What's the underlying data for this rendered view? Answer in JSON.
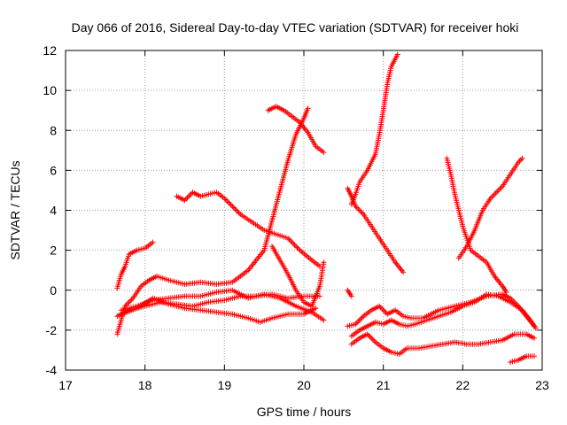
{
  "chart_data": {
    "type": "scatter",
    "title": "Day 066 of 2016, Sidereal Day-to-day VTEC variation (SDTVAR) for receiver hoki",
    "xlabel": "GPS time / hours",
    "ylabel": "SDTVAR / TECUs",
    "xlim": [
      17,
      23
    ],
    "ylim": [
      -4,
      12
    ],
    "xticks": [
      17,
      18,
      19,
      20,
      21,
      22,
      23
    ],
    "yticks": [
      -4,
      -2,
      0,
      2,
      4,
      6,
      8,
      10,
      12
    ],
    "grid": true,
    "marker": "+",
    "marker_color": "#ff0000",
    "series": [
      {
        "name": "s1",
        "points": [
          [
            17.65,
            0.1
          ],
          [
            17.7,
            0.8
          ],
          [
            17.75,
            1.2
          ],
          [
            17.8,
            1.8
          ],
          [
            17.9,
            2.0
          ],
          [
            18.0,
            2.1
          ],
          [
            18.1,
            2.4
          ]
        ]
      },
      {
        "name": "s2",
        "points": [
          [
            17.65,
            -2.2
          ],
          [
            17.7,
            -1.5
          ],
          [
            17.75,
            -0.8
          ],
          [
            17.85,
            -0.4
          ],
          [
            17.95,
            0.2
          ],
          [
            18.05,
            0.5
          ],
          [
            18.15,
            0.7
          ],
          [
            18.3,
            0.5
          ],
          [
            18.5,
            0.3
          ],
          [
            18.7,
            0.4
          ],
          [
            18.9,
            0.3
          ],
          [
            19.1,
            0.4
          ],
          [
            19.3,
            1.0
          ],
          [
            19.5,
            2.0
          ],
          [
            19.6,
            3.5
          ],
          [
            19.7,
            5.0
          ],
          [
            19.8,
            6.5
          ],
          [
            19.9,
            7.8
          ],
          [
            20.0,
            8.6
          ],
          [
            20.05,
            9.1
          ]
        ]
      },
      {
        "name": "s3",
        "points": [
          [
            17.65,
            -1.3
          ],
          [
            17.8,
            -1.0
          ],
          [
            18.0,
            -0.8
          ],
          [
            18.2,
            -0.6
          ],
          [
            18.4,
            -0.7
          ],
          [
            18.6,
            -0.8
          ],
          [
            18.8,
            -0.6
          ],
          [
            19.0,
            -0.5
          ],
          [
            19.2,
            -0.3
          ],
          [
            19.4,
            -0.3
          ],
          [
            19.6,
            -0.2
          ],
          [
            19.8,
            -0.4
          ],
          [
            20.0,
            -0.3
          ],
          [
            20.2,
            -0.3
          ]
        ]
      },
      {
        "name": "s4",
        "points": [
          [
            17.7,
            -1.0
          ],
          [
            17.9,
            -0.8
          ],
          [
            18.1,
            -0.5
          ],
          [
            18.3,
            -0.4
          ],
          [
            18.5,
            -0.3
          ],
          [
            18.7,
            -0.3
          ],
          [
            18.9,
            -0.1
          ],
          [
            19.1,
            0.0
          ],
          [
            19.3,
            -0.4
          ],
          [
            19.5,
            -0.2
          ],
          [
            19.7,
            -0.4
          ],
          [
            19.9,
            -0.8
          ],
          [
            20.1,
            -1.1
          ],
          [
            20.25,
            -1.5
          ]
        ]
      },
      {
        "name": "s5",
        "points": [
          [
            17.7,
            -1.2
          ],
          [
            17.9,
            -0.9
          ],
          [
            18.1,
            -0.4
          ],
          [
            18.3,
            -0.7
          ],
          [
            18.5,
            -0.9
          ],
          [
            18.7,
            -1.0
          ],
          [
            18.9,
            -1.1
          ],
          [
            19.1,
            -1.2
          ],
          [
            19.3,
            -1.4
          ],
          [
            19.45,
            -1.6
          ],
          [
            19.6,
            -1.4
          ],
          [
            19.8,
            -1.2
          ],
          [
            20.0,
            -1.2
          ],
          [
            20.15,
            -0.9
          ]
        ]
      },
      {
        "name": "s6",
        "points": [
          [
            18.4,
            4.7
          ],
          [
            18.5,
            4.5
          ],
          [
            18.6,
            4.9
          ],
          [
            18.7,
            4.7
          ],
          [
            18.8,
            4.8
          ],
          [
            18.9,
            4.9
          ],
          [
            19.0,
            4.6
          ],
          [
            19.1,
            4.2
          ],
          [
            19.2,
            3.8
          ],
          [
            19.35,
            3.4
          ],
          [
            19.5,
            3.0
          ],
          [
            19.65,
            2.8
          ],
          [
            19.8,
            2.6
          ],
          [
            19.95,
            2.0
          ],
          [
            20.1,
            1.5
          ],
          [
            20.2,
            1.2
          ]
        ]
      },
      {
        "name": "s7",
        "points": [
          [
            19.55,
            9.0
          ],
          [
            19.65,
            9.2
          ],
          [
            19.75,
            9.0
          ],
          [
            19.85,
            8.7
          ],
          [
            19.95,
            8.4
          ],
          [
            20.05,
            7.9
          ],
          [
            20.15,
            7.2
          ],
          [
            20.25,
            6.9
          ]
        ]
      },
      {
        "name": "s8",
        "points": [
          [
            19.6,
            2.2
          ],
          [
            19.7,
            1.5
          ],
          [
            19.8,
            0.8
          ],
          [
            19.9,
            0.0
          ],
          [
            20.0,
            -0.6
          ],
          [
            20.1,
            -0.8
          ],
          [
            20.2,
            0.2
          ],
          [
            20.25,
            1.4
          ]
        ]
      },
      {
        "name": "s9",
        "points": [
          [
            20.55,
            5.1
          ],
          [
            20.6,
            4.7
          ],
          [
            20.65,
            4.2
          ],
          [
            20.75,
            3.8
          ],
          [
            20.85,
            3.2
          ],
          [
            20.95,
            2.6
          ],
          [
            21.05,
            2.0
          ],
          [
            21.15,
            1.4
          ],
          [
            21.25,
            0.9
          ]
        ]
      },
      {
        "name": "s10",
        "points": [
          [
            20.6,
            4.3
          ],
          [
            20.65,
            4.8
          ],
          [
            20.7,
            5.4
          ],
          [
            20.8,
            6.0
          ],
          [
            20.9,
            6.8
          ],
          [
            20.95,
            7.8
          ],
          [
            21.0,
            9.0
          ],
          [
            21.05,
            10.3
          ],
          [
            21.1,
            11.2
          ],
          [
            21.18,
            11.8
          ]
        ]
      },
      {
        "name": "s11",
        "points": [
          [
            20.55,
            0.0
          ],
          [
            20.6,
            -0.3
          ]
        ]
      },
      {
        "name": "s12",
        "points": [
          [
            20.55,
            -1.8
          ],
          [
            20.65,
            -1.7
          ],
          [
            20.75,
            -1.3
          ],
          [
            20.85,
            -1.0
          ],
          [
            20.95,
            -0.8
          ],
          [
            21.05,
            -1.2
          ],
          [
            21.15,
            -1.0
          ],
          [
            21.25,
            -1.3
          ],
          [
            21.35,
            -1.4
          ],
          [
            21.5,
            -1.4
          ],
          [
            21.7,
            -1.0
          ],
          [
            21.9,
            -0.8
          ],
          [
            22.1,
            -0.6
          ],
          [
            22.3,
            -0.3
          ],
          [
            22.5,
            -0.2
          ],
          [
            22.6,
            -0.4
          ],
          [
            22.7,
            -0.8
          ],
          [
            22.8,
            -1.3
          ],
          [
            22.9,
            -1.8
          ]
        ]
      },
      {
        "name": "s13",
        "points": [
          [
            20.6,
            -2.3
          ],
          [
            20.7,
            -2.0
          ],
          [
            20.8,
            -1.8
          ],
          [
            20.9,
            -1.6
          ],
          [
            21.0,
            -1.7
          ],
          [
            21.1,
            -1.5
          ],
          [
            21.2,
            -1.7
          ],
          [
            21.3,
            -1.8
          ],
          [
            21.4,
            -1.7
          ],
          [
            21.55,
            -1.5
          ],
          [
            21.7,
            -1.3
          ],
          [
            21.85,
            -1.1
          ],
          [
            22.0,
            -0.8
          ],
          [
            22.15,
            -0.6
          ],
          [
            22.3,
            -0.2
          ],
          [
            22.45,
            -0.3
          ],
          [
            22.6,
            -0.6
          ],
          [
            22.75,
            -1.0
          ],
          [
            22.85,
            -1.5
          ],
          [
            22.92,
            -1.9
          ]
        ]
      },
      {
        "name": "s14",
        "points": [
          [
            20.6,
            -2.7
          ],
          [
            20.7,
            -2.4
          ],
          [
            20.8,
            -2.2
          ],
          [
            20.9,
            -2.6
          ],
          [
            21.0,
            -2.9
          ],
          [
            21.1,
            -3.1
          ],
          [
            21.2,
            -3.2
          ],
          [
            21.3,
            -2.9
          ],
          [
            21.45,
            -2.9
          ],
          [
            21.6,
            -2.8
          ],
          [
            21.75,
            -2.7
          ],
          [
            21.9,
            -2.6
          ],
          [
            22.05,
            -2.7
          ],
          [
            22.2,
            -2.7
          ],
          [
            22.35,
            -2.6
          ],
          [
            22.5,
            -2.5
          ],
          [
            22.65,
            -2.2
          ],
          [
            22.8,
            -2.2
          ],
          [
            22.9,
            -2.4
          ]
        ]
      },
      {
        "name": "s15",
        "points": [
          [
            21.8,
            6.6
          ],
          [
            21.85,
            5.8
          ],
          [
            21.9,
            4.8
          ],
          [
            21.95,
            4.0
          ],
          [
            22.0,
            3.2
          ],
          [
            22.05,
            2.6
          ],
          [
            22.1,
            2.0
          ],
          [
            22.2,
            1.7
          ],
          [
            22.3,
            1.4
          ],
          [
            22.4,
            0.7
          ],
          [
            22.5,
            0.2
          ],
          [
            22.55,
            -0.1
          ]
        ]
      },
      {
        "name": "s16",
        "points": [
          [
            21.95,
            1.6
          ],
          [
            22.05,
            2.2
          ],
          [
            22.15,
            3.0
          ],
          [
            22.25,
            4.0
          ],
          [
            22.35,
            4.6
          ],
          [
            22.5,
            5.2
          ],
          [
            22.6,
            5.8
          ],
          [
            22.7,
            6.4
          ],
          [
            22.75,
            6.6
          ]
        ]
      },
      {
        "name": "s17",
        "points": [
          [
            22.6,
            -3.6
          ],
          [
            22.7,
            -3.5
          ],
          [
            22.8,
            -3.3
          ],
          [
            22.9,
            -3.3
          ]
        ]
      }
    ]
  }
}
